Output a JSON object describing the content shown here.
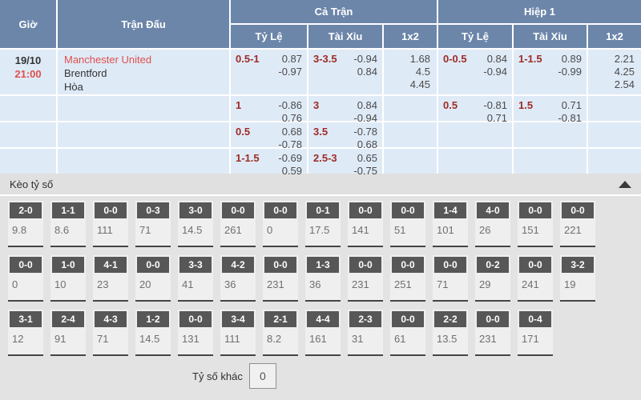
{
  "colors": {
    "header_blue": "#6c86aa",
    "row_light_blue": "#dfeaf7",
    "team_time_red": "#e0504c",
    "handicap_red": "#9d2c24",
    "chip_dark_gray": "#575757",
    "panel_gray": "#e3e3e3"
  },
  "odds_table": {
    "headers": {
      "time": "Giờ",
      "match": "Trận Đấu",
      "full_match": "Cả Trận",
      "first_half": "Hiệp 1",
      "handicap": "Tỷ Lệ",
      "over_under": "Tài Xỉu",
      "one_x_two": "1x2"
    },
    "match": {
      "date": "19/10",
      "time": "21:00",
      "home_team": "Manchester United",
      "away_team": "Brentford",
      "draw_label": "Hòa"
    },
    "rows": [
      {
        "ft_hdp": {
          "line": "0.5-1",
          "top": "0.87",
          "bottom": "-0.97"
        },
        "ft_ou": {
          "line": "3-3.5",
          "top": "-0.94",
          "bottom": "0.84"
        },
        "ft_1x2": {
          "home": "1.68",
          "draw": "4.5",
          "away": "4.45"
        },
        "h1_hdp": {
          "line": "0-0.5",
          "top": "0.84",
          "bottom": "-0.94"
        },
        "h1_ou": {
          "line": "1-1.5",
          "top": "0.89",
          "bottom": "-0.99"
        },
        "h1_1x2": {
          "home": "2.21",
          "draw": "4.25",
          "away": "2.54"
        }
      },
      {
        "ft_hdp": {
          "line": "1",
          "top": "-0.86",
          "bottom": "0.76"
        },
        "ft_ou": {
          "line": "3",
          "top": "0.84",
          "bottom": "-0.94"
        },
        "h1_hdp": {
          "line": "0.5",
          "top": "-0.81",
          "bottom": "0.71"
        },
        "h1_ou": {
          "line": "1.5",
          "top": "0.71",
          "bottom": "-0.81"
        }
      },
      {
        "ft_hdp": {
          "line": "0.5",
          "top": "0.68",
          "bottom": "-0.78"
        },
        "ft_ou": {
          "line": "3.5",
          "top": "-0.78",
          "bottom": "0.68"
        }
      },
      {
        "ft_hdp": {
          "line": "1-1.5",
          "top": "-0.69",
          "bottom": "0.59"
        },
        "ft_ou": {
          "line": "2.5-3",
          "top": "0.65",
          "bottom": "-0.75"
        }
      }
    ]
  },
  "score_panel": {
    "title": "Kèo tỷ số",
    "collapse_icon": "collapse-arrow-up-icon",
    "rows": [
      [
        {
          "score": "2-0",
          "odds": "9.8"
        },
        {
          "score": "1-1",
          "odds": "8.6"
        },
        {
          "score": "0-0",
          "odds": "111"
        },
        {
          "score": "0-3",
          "odds": "71"
        },
        {
          "score": "3-0",
          "odds": "14.5"
        },
        {
          "score": "0-0",
          "odds": "261"
        },
        {
          "score": "0-0",
          "odds": "0"
        },
        {
          "score": "0-1",
          "odds": "17.5"
        },
        {
          "score": "0-0",
          "odds": "141"
        },
        {
          "score": "0-0",
          "odds": "51"
        },
        {
          "score": "1-4",
          "odds": "101"
        },
        {
          "score": "4-0",
          "odds": "26"
        },
        {
          "score": "0-0",
          "odds": "151"
        },
        {
          "score": "0-0",
          "odds": "221"
        }
      ],
      [
        {
          "score": "0-0",
          "odds": "0"
        },
        {
          "score": "1-0",
          "odds": "10"
        },
        {
          "score": "4-1",
          "odds": "23"
        },
        {
          "score": "0-0",
          "odds": "20"
        },
        {
          "score": "3-3",
          "odds": "41"
        },
        {
          "score": "4-2",
          "odds": "36"
        },
        {
          "score": "0-0",
          "odds": "231"
        },
        {
          "score": "1-3",
          "odds": "36"
        },
        {
          "score": "0-0",
          "odds": "231"
        },
        {
          "score": "0-0",
          "odds": "251"
        },
        {
          "score": "0-0",
          "odds": "71"
        },
        {
          "score": "0-2",
          "odds": "29"
        },
        {
          "score": "0-0",
          "odds": "241"
        },
        {
          "score": "3-2",
          "odds": "19"
        }
      ],
      [
        {
          "score": "3-1",
          "odds": "12"
        },
        {
          "score": "2-4",
          "odds": "91"
        },
        {
          "score": "4-3",
          "odds": "71"
        },
        {
          "score": "1-2",
          "odds": "14.5"
        },
        {
          "score": "0-0",
          "odds": "131"
        },
        {
          "score": "3-4",
          "odds": "111"
        },
        {
          "score": "2-1",
          "odds": "8.2"
        },
        {
          "score": "4-4",
          "odds": "161"
        },
        {
          "score": "2-3",
          "odds": "31"
        },
        {
          "score": "0-0",
          "odds": "61"
        },
        {
          "score": "2-2",
          "odds": "13.5"
        },
        {
          "score": "0-0",
          "odds": "231"
        },
        {
          "score": "0-4",
          "odds": "171"
        }
      ]
    ],
    "other_score_label": "Tỷ số khác",
    "other_score_value": "0"
  }
}
